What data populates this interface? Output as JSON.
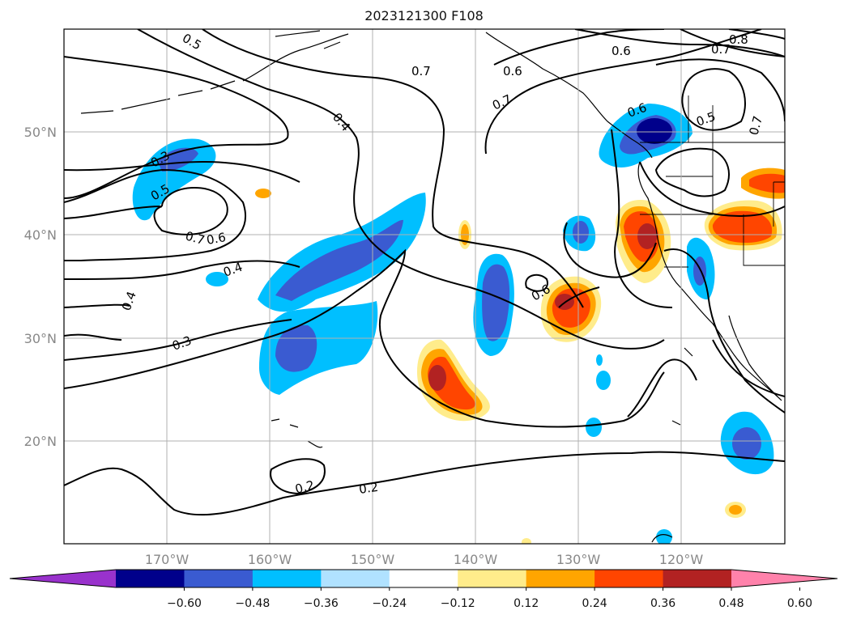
{
  "title": "2023121300 F108",
  "map": {
    "lat_labels": [
      "50°N",
      "40°N",
      "30°N",
      "20°N"
    ],
    "lon_labels": [
      "170°W",
      "160°W",
      "150°W",
      "140°W",
      "130°W",
      "120°W"
    ],
    "contour_labels": [
      "0.5",
      "0.7",
      "0.6",
      "0.7",
      "0.6",
      "0.8",
      "0.7",
      "0.4",
      "0.3",
      "0.5",
      "0.6",
      "0.5",
      "0.7",
      "0.7",
      "0.6",
      "0.4",
      "0.4",
      "0.6",
      "0.3",
      "0.2",
      "0.2"
    ]
  },
  "colorbar": {
    "colors": [
      "#9932cc",
      "#00008b",
      "#3a5bd1",
      "#00bfff",
      "#b0e2ff",
      "#ffffff",
      "#ffec8b",
      "#ffa500",
      "#ff4500",
      "#b22222",
      "#ff82ab"
    ],
    "tick_labels": [
      "−0.60",
      "−0.48",
      "−0.36",
      "−0.24",
      "−0.12",
      "0.12",
      "0.24",
      "0.36",
      "0.48",
      "0.60"
    ]
  }
}
